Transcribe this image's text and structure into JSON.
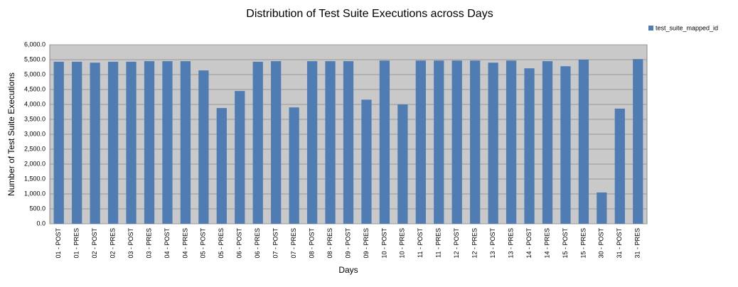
{
  "chart_data": {
    "type": "bar",
    "title": "Distribution of Test Suite Executions across Days",
    "x_label": "Days",
    "y_label": "Number of Test Suite Executions",
    "categories": [
      "01 - POST",
      "01 - PRES",
      "02 - POST",
      "02 - PRES",
      "03 - POST",
      "03 - PRES",
      "04 - POST",
      "04 - PRES",
      "05 - POST",
      "05 - PRES",
      "06 - POST",
      "06 - PRES",
      "07 - POST",
      "07 - PRES",
      "08 - POST",
      "08 - PRES",
      "09 - POST",
      "09 - PRES",
      "10 - POST",
      "10 - PRES",
      "11 - POST",
      "11 - PRES",
      "12 - POST",
      "12 - PRES",
      "13 - POST",
      "13 - PRES",
      "14 - POST",
      "14 - PRES",
      "15 - POST",
      "15 - PRES",
      "30 - POST",
      "31 - POST",
      "31 - PRES"
    ],
    "series": [
      {
        "name": "test_suite_mapped_id",
        "color": "#4f7db3",
        "values": [
          5430,
          5430,
          5400,
          5430,
          5430,
          5450,
          5450,
          5450,
          5140,
          3880,
          4450,
          5430,
          5450,
          3900,
          5450,
          5450,
          5450,
          4160,
          5470,
          4000,
          5470,
          5470,
          5470,
          5470,
          5400,
          5470,
          5210,
          5450,
          5280,
          5500,
          1050,
          3860,
          5520
        ]
      }
    ],
    "ylim": [
      0,
      6000
    ],
    "yticks": [
      {
        "value": 0,
        "label": "0.0"
      },
      {
        "value": 500,
        "label": "500.0"
      },
      {
        "value": 1000,
        "label": "1,000.0"
      },
      {
        "value": 1500,
        "label": "1,500.0"
      },
      {
        "value": 2000,
        "label": "2,000.0"
      },
      {
        "value": 2500,
        "label": "2,500.0"
      },
      {
        "value": 3000,
        "label": "3,000.0"
      },
      {
        "value": 3500,
        "label": "3,500.0"
      },
      {
        "value": 4000,
        "label": "4,000.0"
      },
      {
        "value": 4500,
        "label": "4,500.0"
      },
      {
        "value": 5000,
        "label": "5,000.0"
      },
      {
        "value": 5500,
        "label": "5,500.0"
      },
      {
        "value": 6000,
        "label": "6,000.0"
      }
    ],
    "grid": true,
    "legend": "top-right"
  }
}
